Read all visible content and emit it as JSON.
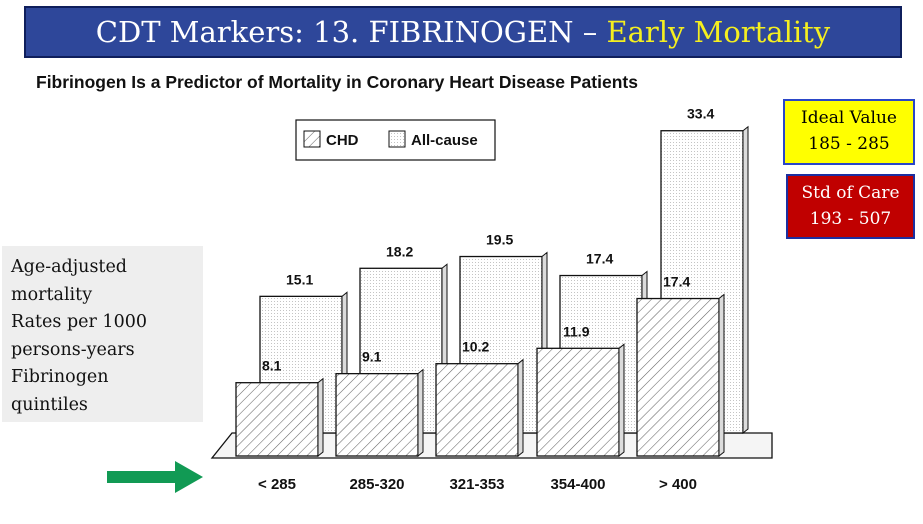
{
  "header": {
    "title_main": "CDT Markers: 13. FIBRINOGEN – ",
    "title_highlight": "Early Mortality"
  },
  "subtitle": "Fibrinogen Is a Predictor of Mortality in Coronary Heart Disease Patients",
  "side_note": {
    "lines": [
      "Age-adjusted",
      "mortality",
      "Rates per 1000",
      "persons-years",
      "Fibrinogen",
      "quintiles"
    ]
  },
  "badges": {
    "ideal": {
      "line1": "Ideal Value",
      "line2": "185 - 285"
    },
    "std": {
      "line1": "Std of Care",
      "line2": "193 - 507"
    }
  },
  "colors": {
    "title_bg": "#2e479a",
    "title_highlight": "#f5ef1f",
    "ideal_bg": "#ffff00",
    "std_bg": "#c00000",
    "arrow": "#119a54"
  },
  "arrow_icon": "right-arrow-icon",
  "chart_data": {
    "type": "bar",
    "style": "3d-grouped",
    "categories": [
      "< 285",
      "285-320",
      "321-353",
      "354-400",
      "> 400"
    ],
    "series": [
      {
        "name": "CHD",
        "pattern": "hatched",
        "values": [
          8.1,
          9.1,
          10.2,
          11.9,
          17.4
        ],
        "labels": [
          "8.1",
          "9.1",
          "10.2",
          "11.9",
          "17.4"
        ]
      },
      {
        "name": "All-cause",
        "pattern": "dotted",
        "values": [
          15.1,
          18.2,
          19.5,
          17.4,
          33.4
        ],
        "labels": [
          "15.1",
          "18.2",
          "19.5",
          "17.4",
          "33.4"
        ]
      }
    ],
    "legend_position": "top-center",
    "ylim": [
      0,
      35
    ],
    "grid": false
  }
}
